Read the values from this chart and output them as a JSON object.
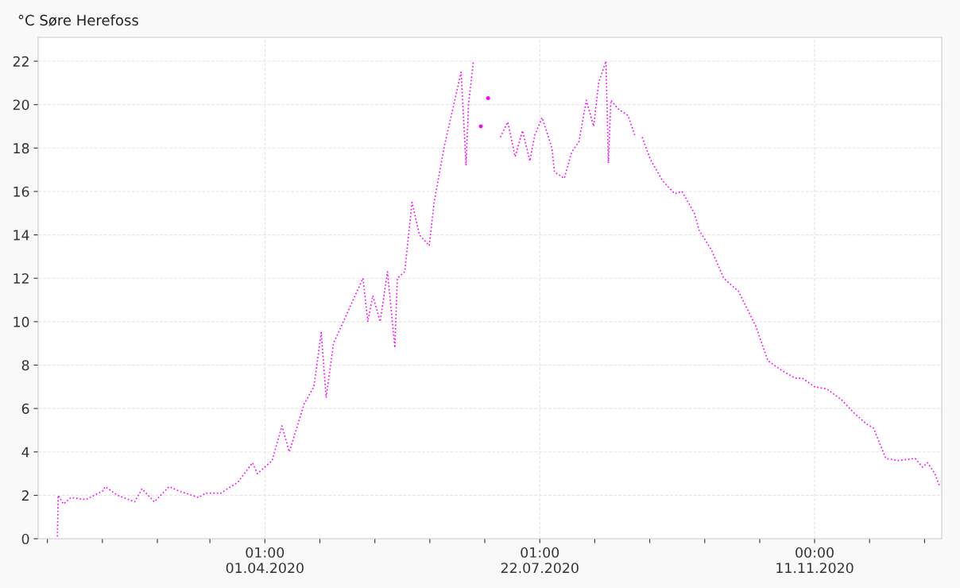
{
  "chart_data": {
    "type": "line",
    "title": "°C Søre Herefoss",
    "x": [
      "2020-01-07T12:00",
      "2020-01-07T20:00",
      "2020-01-10",
      "2020-01-13",
      "2020-01-19",
      "2020-01-26",
      "2020-01-27",
      "2020-02-01",
      "2020-02-08",
      "2020-02-11",
      "2020-02-16",
      "2020-02-22",
      "2020-02-26",
      "2020-03-05",
      "2020-03-08",
      "2020-03-14",
      "2020-03-21",
      "2020-03-27",
      "2020-03-29",
      "2020-04-04",
      "2020-04-08",
      "2020-04-11",
      "2020-04-14",
      "2020-04-17",
      "2020-04-21",
      "2020-04-24",
      "2020-04-26",
      "2020-04-29",
      "2020-05-05",
      "2020-05-11",
      "2020-05-13",
      "2020-05-15",
      "2020-05-18",
      "2020-05-21",
      "2020-05-24",
      "2020-05-25",
      "2020-05-28",
      "2020-05-31",
      "2020-06-03",
      "2020-06-07",
      "2020-06-09",
      "2020-06-13",
      "2020-06-18",
      "2020-06-20",
      "2020-06-22",
      "2020-06-23",
      "2020-06-25",
      "2020-06-26",
      "2020-06-28",
      "2020-06-29",
      "2020-07-01",
      "2020-07-02",
      "2020-07-05",
      "2020-07-06",
      "2020-07-09",
      "2020-07-12",
      "2020-07-15",
      "2020-07-18",
      "2020-07-20",
      "2020-07-23",
      "2020-07-27",
      "2020-07-28",
      "2020-08-01",
      "2020-08-04",
      "2020-08-07",
      "2020-08-10",
      "2020-08-13",
      "2020-08-15",
      "2020-08-18",
      "2020-08-19",
      "2020-08-20",
      "2020-08-23",
      "2020-08-27",
      "2020-08-30",
      "2020-09-01",
      "2020-09-01T18:00",
      "2020-09-05",
      "2020-09-10",
      "2020-09-15",
      "2020-09-18",
      "2020-09-23",
      "2020-09-25",
      "2020-09-30",
      "2020-10-05",
      "2020-10-11",
      "2020-10-18",
      "2020-10-23",
      "2020-10-28",
      "2020-11-03",
      "2020-11-06",
      "2020-11-11",
      "2020-11-16",
      "2020-11-22",
      "2020-11-27",
      "2020-12-02",
      "2020-12-05",
      "2020-12-10",
      "2020-12-15",
      "2020-12-22",
      "2020-12-25",
      "2020-12-27",
      "2020-12-30",
      "2021-01-01"
    ],
    "series": [
      {
        "color": "#ff00ff",
        "values": [
          0.1,
          2.0,
          1.6,
          1.9,
          1.8,
          2.2,
          2.4,
          2.0,
          1.7,
          2.3,
          1.7,
          2.4,
          2.2,
          1.9,
          2.1,
          2.1,
          2.6,
          3.5,
          3.0,
          3.6,
          5.2,
          4.0,
          5.1,
          6.2,
          7.0,
          9.5,
          6.5,
          9.0,
          10.5,
          12.0,
          10.0,
          11.2,
          10.0,
          12.3,
          8.8,
          12.0,
          12.3,
          15.5,
          14.0,
          13.5,
          15.5,
          18.0,
          20.5,
          21.5,
          17.2,
          20.0,
          22.0,
          null,
          19.0,
          null,
          20.3,
          null,
          null,
          18.5,
          19.2,
          17.6,
          18.8,
          17.4,
          18.6,
          19.4,
          18.0,
          16.9,
          16.6,
          17.8,
          18.3,
          20.2,
          19.0,
          21.0,
          22.0,
          17.3,
          20.2,
          19.8,
          19.5,
          18.5,
          null,
          18.5,
          17.5,
          16.5,
          15.9,
          16.0,
          15.0,
          14.2,
          13.3,
          12.0,
          11.4,
          9.8,
          8.2,
          7.8,
          7.4,
          7.4,
          7.0,
          6.9,
          6.4,
          5.8,
          5.3,
          5.1,
          3.7,
          3.6,
          3.7,
          3.3,
          3.5,
          3.0,
          2.4
        ]
      }
    ],
    "xlim": [
      "2019-12-30T16:00",
      "2021-01-01T19:00"
    ],
    "xticks": [
      {
        "value": "2020-01-03T10:36",
        "label": null
      },
      {
        "value": "2020-01-25T20:12",
        "label": null
      },
      {
        "value": "2020-02-17T05:48",
        "label": null
      },
      {
        "value": "2020-03-09T15:24",
        "label": null
      },
      {
        "value": "2020-04-01T01:00",
        "label": "01:00\n01.04.2020"
      },
      {
        "value": "2020-04-23T10:36",
        "label": null
      },
      {
        "value": "2020-05-15T20:12",
        "label": null
      },
      {
        "value": "2020-06-07T05:48",
        "label": null
      },
      {
        "value": "2020-06-29T15:24",
        "label": null
      },
      {
        "value": "2020-07-22T01:00",
        "label": "01:00\n22.07.2020"
      },
      {
        "value": "2020-08-13T10:36",
        "label": null
      },
      {
        "value": "2020-09-04T20:12",
        "label": null
      },
      {
        "value": "2020-09-27T05:48",
        "label": null
      },
      {
        "value": "2020-10-19T15:24",
        "label": null
      },
      {
        "value": "2020-11-11T00:00",
        "label": "00:00\n11.11.2020"
      },
      {
        "value": "2020-12-03T09:36",
        "label": null
      },
      {
        "value": "2020-12-25T19:12",
        "label": null
      }
    ],
    "ylim": [
      0,
      23.1
    ],
    "yticks": [
      0,
      2,
      4,
      6,
      8,
      10,
      12,
      14,
      16,
      18,
      20,
      22
    ],
    "grid": true,
    "line_style": "dotted",
    "marker": "none"
  }
}
